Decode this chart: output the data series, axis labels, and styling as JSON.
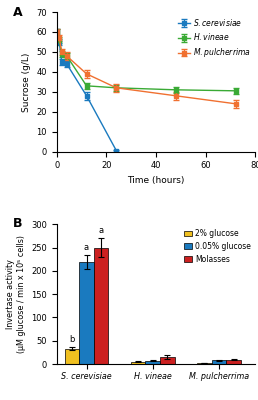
{
  "panel_A": {
    "time": [
      0,
      1,
      2,
      4,
      12,
      24,
      48,
      72
    ],
    "sc_sucrose": [
      60,
      55,
      45,
      44,
      28,
      0.5,
      null,
      null
    ],
    "sc_err": [
      1.5,
      1.5,
      1.5,
      1.5,
      2,
      0.5,
      null,
      null
    ],
    "hv_sucrose": [
      60,
      56,
      49,
      48,
      33,
      32,
      31,
      30.5
    ],
    "hv_err": [
      1.5,
      1.5,
      1.5,
      1.5,
      1.5,
      1.5,
      1.5,
      1.5
    ],
    "mp_sucrose": [
      60,
      57,
      50,
      48,
      39,
      32,
      28,
      24
    ],
    "mp_err": [
      1.5,
      1.5,
      1.5,
      2,
      2,
      2,
      2,
      2
    ],
    "sc_color": "#1a7abf",
    "hv_color": "#3aaa35",
    "mp_color": "#f07030",
    "xlabel": "Time (hours)",
    "ylabel": "Sucrose (g/L)",
    "xlim": [
      0,
      78
    ],
    "ylim": [
      0,
      70
    ],
    "xticks": [
      0,
      20,
      40,
      60,
      80
    ],
    "yticks": [
      0,
      10,
      20,
      30,
      40,
      50,
      60,
      70
    ],
    "label_A": "A"
  },
  "panel_B": {
    "species": [
      "S. cerevisiae",
      "H. vineae",
      "M. pulcherrima"
    ],
    "glucose2_vals": [
      33,
      5,
      2
    ],
    "glucose2_err": [
      4,
      1,
      0.5
    ],
    "glucose005_vals": [
      220,
      7,
      8
    ],
    "glucose005_err": [
      15,
      1,
      1
    ],
    "molasses_vals": [
      250,
      15,
      9
    ],
    "molasses_err": [
      20,
      5,
      1
    ],
    "color_glucose2": "#f0c020",
    "color_glucose005": "#1a7abf",
    "color_molasses": "#cc2020",
    "ylabel": "Invertase activity\n(μM glucose / min x 10⁵ cells)",
    "ylim": [
      0,
      300
    ],
    "yticks": [
      0,
      50,
      100,
      150,
      200,
      250,
      300
    ],
    "label_B": "B",
    "annot_sc": [
      "b",
      "a",
      "a"
    ]
  }
}
